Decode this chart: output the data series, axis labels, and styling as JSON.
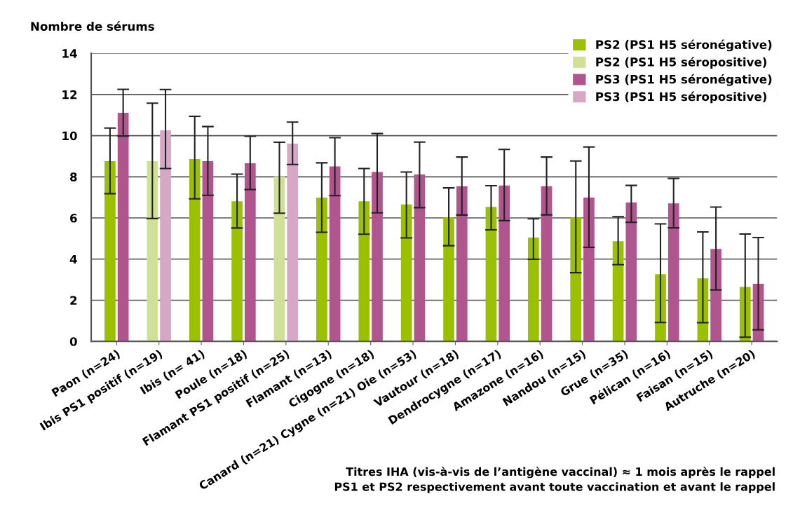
{
  "chart_data": {
    "type": "bar",
    "ylabel": "Nombre de sérums",
    "categories": [
      "Paon (n=24)",
      "Ibis PS1 positif (n=19)",
      "Ibis (n= 41)",
      "Poule (n=18)",
      "Flamant PS1 positif (n=25)",
      "Flamant (n=13)",
      "Cigogne (n=18)",
      "Canard (n=21) Cygne (n=21) Oie (n=53)",
      "Vautour (n=18)",
      "Dendrocygne (n=17)",
      "Amazone (n=16)",
      "Nandou (n=15)",
      "Grue (n=35)",
      "Pélican (n=16)",
      "Faisan (n=15)",
      "Autruche (n=20)"
    ],
    "series": [
      {
        "name": "PS2 (PS1 H5 séronégative)",
        "color": "#9bc000",
        "values": [
          8.76,
          null,
          8.86,
          6.81,
          null,
          6.99,
          6.81,
          6.66,
          6.03,
          6.54,
          5.05,
          6.03,
          4.87,
          3.27,
          3.06,
          2.65
        ],
        "errors": [
          [
            7.18,
            10.37
          ],
          null,
          [
            6.93,
            10.94
          ],
          [
            5.51,
            8.13
          ],
          null,
          [
            5.3,
            8.68
          ],
          [
            5.21,
            8.4
          ],
          [
            5.03,
            8.23
          ],
          [
            4.65,
            7.46
          ],
          [
            5.42,
            7.57
          ],
          [
            3.99,
            5.96
          ],
          [
            3.34,
            8.77
          ],
          [
            3.73,
            6.06
          ],
          [
            0.92,
            5.71
          ],
          [
            0.91,
            5.32
          ],
          [
            0.2,
            5.22
          ]
        ]
      },
      {
        "name": "PS2 (PS1 H5 séropositive)",
        "color": "#d0e096",
        "values": [
          null,
          8.76,
          null,
          null,
          8.01,
          null,
          null,
          null,
          null,
          null,
          null,
          null,
          null,
          null,
          null,
          null
        ],
        "errors": [
          null,
          [
            5.97,
            11.58
          ],
          null,
          null,
          [
            6.23,
            9.68
          ],
          null,
          null,
          null,
          null,
          null,
          null,
          null,
          null,
          null,
          null,
          null
        ]
      },
      {
        "name": "PS3 (PS1 H5 séronégative)",
        "color": "#b0558e",
        "values": [
          11.11,
          null,
          8.76,
          8.66,
          null,
          8.5,
          8.23,
          8.11,
          7.54,
          7.58,
          7.54,
          6.99,
          6.75,
          6.71,
          4.49,
          2.8
        ],
        "errors": [
          [
            9.98,
            12.25
          ],
          null,
          [
            7.1,
            10.44
          ],
          [
            7.38,
            9.97
          ],
          null,
          [
            7.08,
            9.9
          ],
          [
            6.25,
            10.1
          ],
          [
            6.5,
            9.69
          ],
          [
            6.14,
            8.96
          ],
          [
            5.87,
            9.33
          ],
          [
            6.15,
            8.96
          ],
          [
            4.57,
            9.45
          ],
          [
            5.79,
            7.58
          ],
          [
            5.52,
            7.92
          ],
          [
            2.5,
            6.53
          ],
          [
            0.56,
            5.05
          ]
        ]
      },
      {
        "name": "PS3 (PS1 H5 séropositive)",
        "color": "#d6a8c6",
        "values": [
          null,
          10.26,
          null,
          null,
          9.61,
          null,
          null,
          null,
          null,
          null,
          null,
          null,
          null,
          null,
          null,
          null
        ],
        "errors": [
          null,
          [
            8.4,
            12.24
          ],
          null,
          null,
          [
            8.6,
            10.66
          ],
          null,
          null,
          null,
          null,
          null,
          null,
          null,
          null,
          null,
          null,
          null
        ]
      }
    ],
    "ylim": [
      0,
      14
    ],
    "yticks": [
      0,
      2,
      4,
      6,
      8,
      10,
      12,
      14
    ],
    "grid": "y",
    "legend": "top right",
    "annotations": [
      "Titres IHA (vis-à-vis de l’antigène vaccinal) ≈ 1 mois après le rappel",
      "PS1 et PS2 respectivement avant toute vaccination et avant le rappel"
    ]
  }
}
